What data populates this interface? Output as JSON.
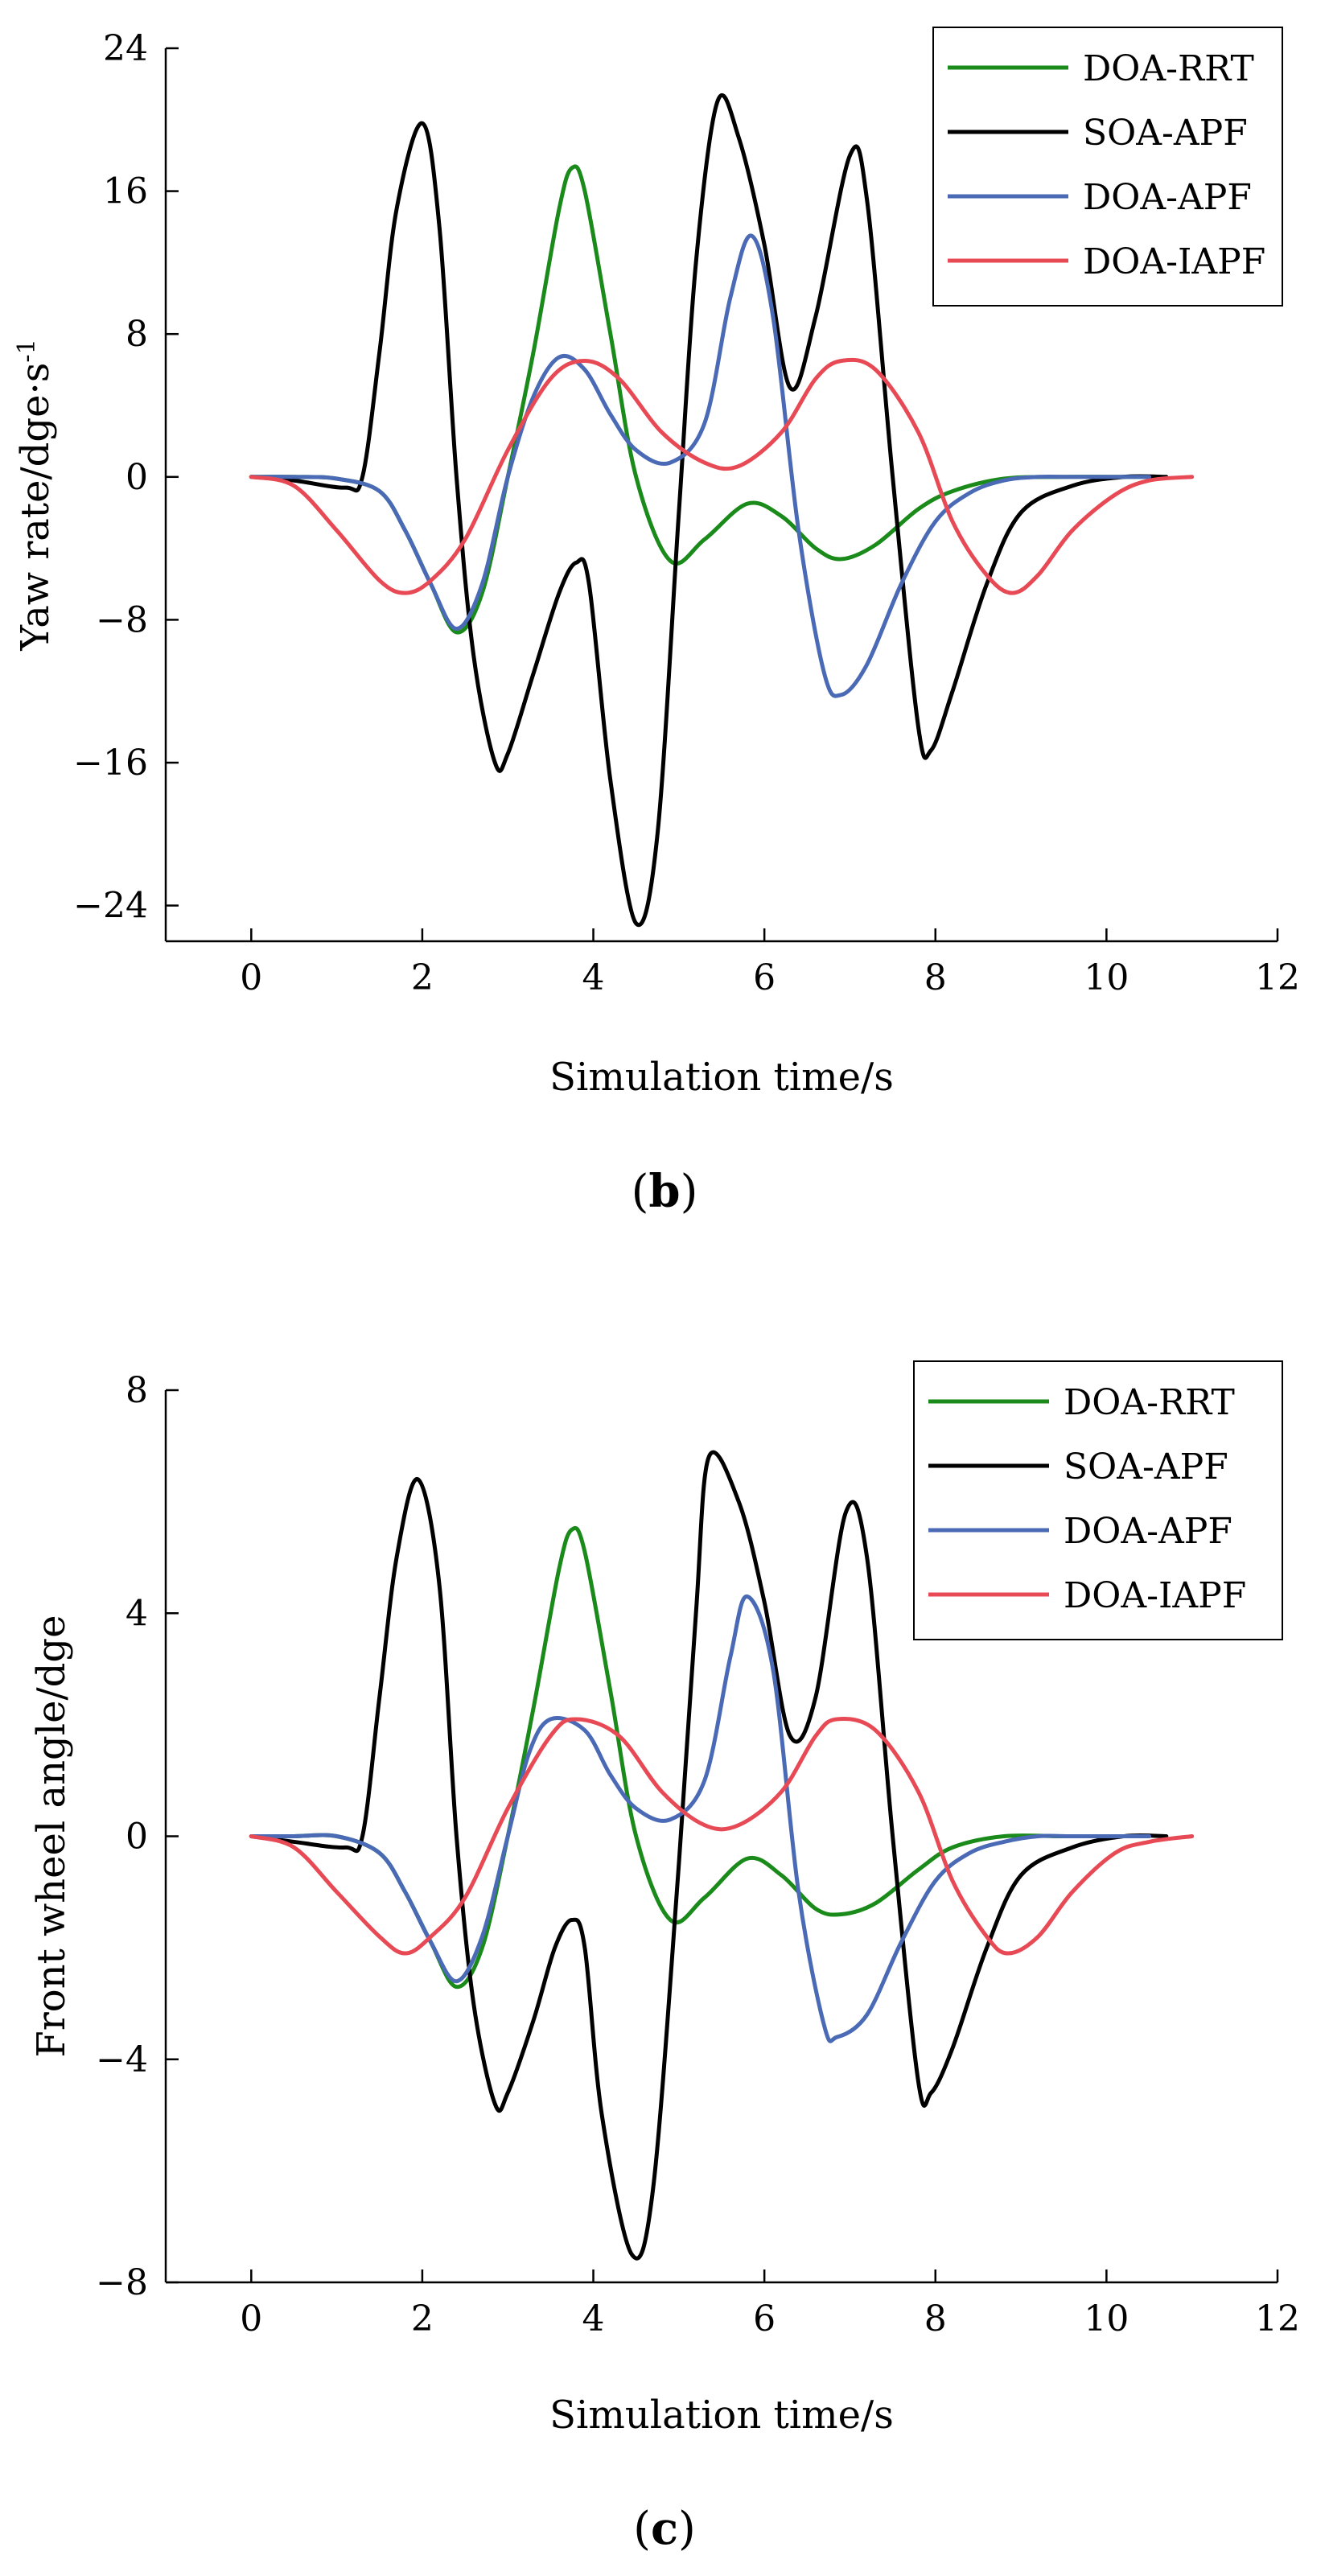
{
  "chart_data": [
    {
      "type": "line",
      "panel_label_open": "(",
      "panel_label_letter": "b",
      "panel_label_close": ")",
      "xlabel": "Simulation time/s",
      "ylabel_main": "Yaw rate/dge·s",
      "ylabel_sup": "-1",
      "xlim": [
        -1,
        12
      ],
      "ylim": [
        -26,
        24
      ],
      "xticks": [
        0,
        2,
        4,
        6,
        8,
        10,
        12
      ],
      "xtick_labels": [
        "0",
        "2",
        "4",
        "6",
        "8",
        "10",
        "12"
      ],
      "yticks": [
        -24,
        -16,
        -8,
        0,
        8,
        16,
        24
      ],
      "ytick_labels": [
        "−24",
        "−16",
        "−8",
        "0",
        "8",
        "16",
        "24"
      ],
      "legend_position": "top-right",
      "series": [
        {
          "name": "DOA-RRT",
          "color": "#1a8a1a",
          "x": [
            0,
            0.5,
            1.0,
            1.5,
            1.8,
            2.1,
            2.4,
            2.7,
            3.0,
            3.3,
            3.6,
            3.75,
            3.9,
            4.2,
            4.5,
            4.9,
            5.3,
            5.8,
            6.2,
            6.6,
            6.9,
            7.3,
            7.8,
            8.2,
            8.8,
            9.5,
            10.2,
            10.5
          ],
          "values": [
            0,
            0,
            -0.1,
            -0.8,
            -3,
            -6,
            -8.7,
            -6.5,
            0,
            7,
            15,
            17.3,
            16,
            8,
            0,
            -4.7,
            -3.5,
            -1.5,
            -2.2,
            -4,
            -4.6,
            -3.8,
            -1.8,
            -0.8,
            -0.1,
            0,
            0,
            0
          ]
        },
        {
          "name": "SOA-APF",
          "color": "#000000",
          "x": [
            0,
            0.5,
            1.1,
            1.3,
            1.5,
            1.7,
            2.0,
            2.2,
            2.4,
            2.6,
            2.85,
            3.0,
            3.3,
            3.6,
            3.8,
            3.95,
            4.2,
            4.5,
            4.75,
            5.0,
            5.2,
            5.45,
            5.7,
            6.0,
            6.3,
            6.6,
            7.0,
            7.2,
            7.5,
            7.8,
            7.95,
            8.2,
            8.6,
            9.0,
            9.6,
            10.2,
            10.7
          ],
          "values": [
            0,
            -0.2,
            -0.6,
            0,
            7,
            15,
            19.8,
            14,
            0,
            -10,
            -16,
            -15.5,
            -11,
            -6.5,
            -4.8,
            -6,
            -17,
            -25,
            -20,
            -2,
            12,
            21,
            19,
            13,
            5,
            9,
            18,
            15.5,
            0,
            -14,
            -15.3,
            -12,
            -6,
            -2,
            -0.5,
            0,
            0
          ]
        },
        {
          "name": "DOA-APF",
          "color": "#4a6ab5",
          "x": [
            0,
            0.5,
            1.0,
            1.5,
            1.8,
            2.1,
            2.4,
            2.7,
            3.0,
            3.3,
            3.6,
            3.9,
            4.2,
            4.5,
            4.9,
            5.3,
            5.6,
            5.85,
            6.1,
            6.4,
            6.7,
            6.9,
            7.2,
            7.6,
            8.0,
            8.4,
            8.8,
            9.2,
            9.6,
            10.2,
            10.5
          ],
          "values": [
            0,
            0,
            -0.1,
            -0.8,
            -3,
            -6,
            -8.5,
            -6,
            0,
            4.5,
            6.7,
            6,
            3.5,
            1.5,
            0.8,
            3,
            10,
            13.5,
            9,
            -3,
            -11,
            -12.2,
            -10.5,
            -6,
            -2.5,
            -0.9,
            -0.2,
            0,
            0,
            0,
            0
          ]
        },
        {
          "name": "DOA-IAPF",
          "color": "#e84a55",
          "x": [
            0,
            0.5,
            1.0,
            1.5,
            1.8,
            2.1,
            2.5,
            3.0,
            3.5,
            3.9,
            4.3,
            4.8,
            5.3,
            5.7,
            6.2,
            6.6,
            6.9,
            7.3,
            7.8,
            8.2,
            8.6,
            8.9,
            9.2,
            9.6,
            10.1,
            10.5,
            11.0
          ],
          "values": [
            0,
            -0.5,
            -3,
            -5.8,
            -6.5,
            -5.8,
            -3.5,
            1.5,
            5.5,
            6.5,
            5.5,
            2.5,
            0.8,
            0.6,
            2.5,
            5.5,
            6.5,
            6,
            2.5,
            -2.5,
            -5.5,
            -6.5,
            -5.5,
            -3,
            -1,
            -0.2,
            0
          ]
        }
      ]
    },
    {
      "type": "line",
      "panel_label_open": "(",
      "panel_label_letter": "c",
      "panel_label_close": ")",
      "xlabel": "Simulation time/s",
      "ylabel_main": "Front wheel angle/dge",
      "ylabel_sup": "",
      "xlim": [
        -1,
        12
      ],
      "ylim": [
        -8,
        8
      ],
      "xticks": [
        0,
        2,
        4,
        6,
        8,
        10,
        12
      ],
      "xtick_labels": [
        "0",
        "2",
        "4",
        "6",
        "8",
        "10",
        "12"
      ],
      "yticks": [
        -8,
        -4,
        0,
        4,
        8
      ],
      "ytick_labels": [
        "−8",
        "−4",
        "0",
        "4",
        "8"
      ],
      "legend_position": "top-right",
      "series": [
        {
          "name": "DOA-RRT",
          "color": "#1a8a1a",
          "x": [
            0,
            0.5,
            1.0,
            1.5,
            1.8,
            2.1,
            2.4,
            2.7,
            3.0,
            3.3,
            3.6,
            3.75,
            3.9,
            4.2,
            4.5,
            4.9,
            5.3,
            5.8,
            6.2,
            6.6,
            6.9,
            7.3,
            7.8,
            8.2,
            8.8,
            9.5,
            10.2,
            10.5
          ],
          "values": [
            0,
            0,
            0,
            -0.3,
            -1.0,
            -1.9,
            -2.7,
            -2.0,
            0,
            2.3,
            4.8,
            5.5,
            5.1,
            2.6,
            0,
            -1.5,
            -1.1,
            -0.4,
            -0.7,
            -1.3,
            -1.4,
            -1.2,
            -0.6,
            -0.2,
            0,
            0,
            0,
            0
          ]
        },
        {
          "name": "SOA-APF",
          "color": "#000000",
          "x": [
            0,
            0.5,
            1.1,
            1.3,
            1.5,
            1.7,
            1.95,
            2.2,
            2.4,
            2.6,
            2.85,
            3.0,
            3.3,
            3.55,
            3.75,
            3.9,
            4.1,
            4.45,
            4.7,
            5.0,
            5.2,
            5.35,
            5.7,
            6.0,
            6.3,
            6.6,
            6.95,
            7.2,
            7.5,
            7.8,
            7.95,
            8.2,
            8.6,
            9.0,
            9.6,
            10.2,
            10.7
          ],
          "values": [
            0,
            -0.1,
            -0.2,
            0,
            2.5,
            5,
            6.4,
            4.5,
            0,
            -3,
            -4.8,
            -4.6,
            -3.3,
            -2,
            -1.5,
            -2,
            -5,
            -7.5,
            -6.3,
            -0.5,
            4,
            6.8,
            6,
            4.2,
            1.8,
            2.5,
            5.8,
            5,
            0,
            -4.4,
            -4.6,
            -3.8,
            -2,
            -0.7,
            -0.2,
            0,
            0
          ]
        },
        {
          "name": "DOA-APF",
          "color": "#4a6ab5",
          "x": [
            0,
            0.5,
            1.0,
            1.5,
            1.8,
            2.1,
            2.4,
            2.7,
            3.0,
            3.25,
            3.5,
            3.9,
            4.2,
            4.5,
            4.9,
            5.3,
            5.6,
            5.8,
            6.1,
            6.4,
            6.7,
            6.85,
            7.2,
            7.6,
            8.0,
            8.4,
            8.8,
            9.2,
            9.6,
            10.2,
            10.5
          ],
          "values": [
            0,
            0,
            0,
            -0.3,
            -1.0,
            -1.9,
            -2.6,
            -1.8,
            0,
            1.5,
            2.1,
            1.9,
            1.1,
            0.5,
            0.3,
            1.0,
            3.2,
            4.3,
            3,
            -1,
            -3.4,
            -3.6,
            -3.2,
            -1.9,
            -0.8,
            -0.3,
            -0.1,
            0,
            0,
            0,
            0
          ]
        },
        {
          "name": "DOA-IAPF",
          "color": "#e84a55",
          "x": [
            0,
            0.5,
            1.0,
            1.5,
            1.8,
            2.1,
            2.5,
            3.0,
            3.5,
            3.8,
            4.3,
            4.8,
            5.3,
            5.7,
            6.2,
            6.6,
            6.85,
            7.3,
            7.8,
            8.2,
            8.6,
            8.85,
            9.2,
            9.6,
            10.1,
            10.5,
            11.0
          ],
          "values": [
            0,
            -0.2,
            -1.0,
            -1.8,
            -2.1,
            -1.8,
            -1.1,
            0.5,
            1.8,
            2.1,
            1.8,
            0.8,
            0.2,
            0.2,
            0.8,
            1.8,
            2.1,
            1.9,
            0.8,
            -0.8,
            -1.8,
            -2.1,
            -1.8,
            -1,
            -0.3,
            -0.1,
            0
          ]
        }
      ]
    }
  ]
}
